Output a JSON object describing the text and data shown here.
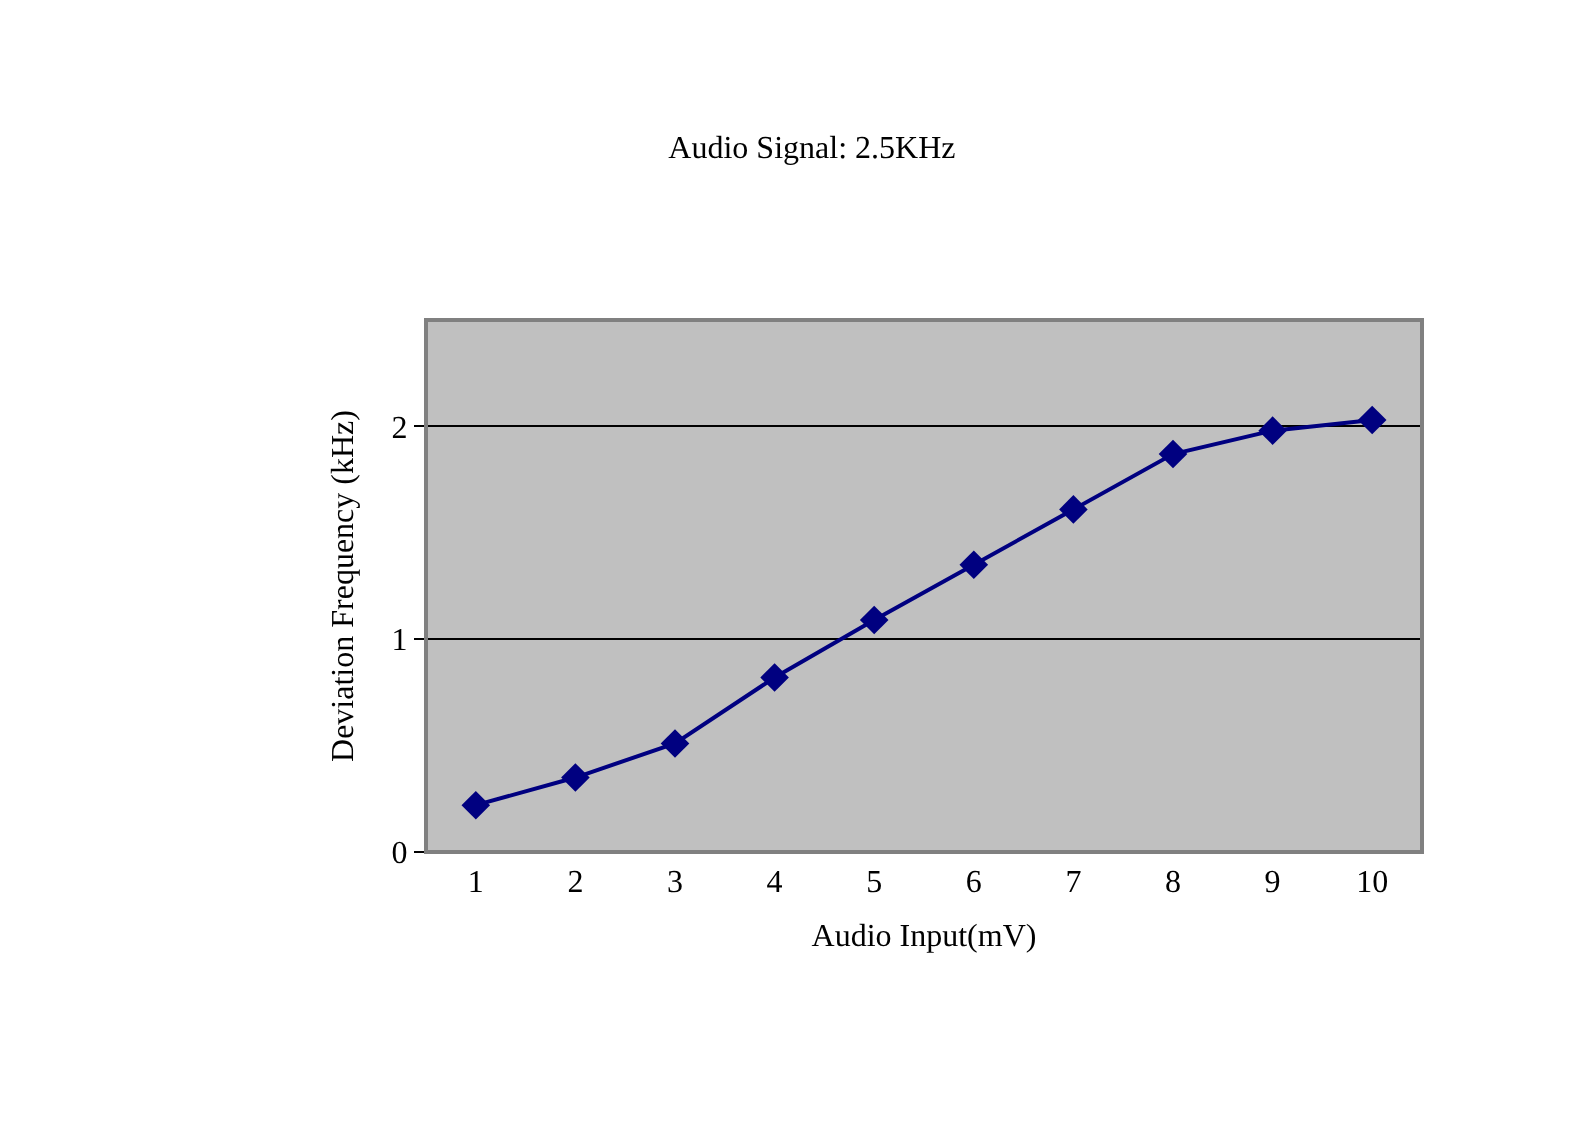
{
  "chart_data": {
    "type": "line",
    "title": "Audio Signal: 2.5KHz",
    "xlabel": "Audio Input(mV)",
    "ylabel": "Deviation Frequency (kHz)",
    "categories": [
      "1",
      "2",
      "3",
      "4",
      "5",
      "6",
      "7",
      "8",
      "9",
      "10"
    ],
    "series": [
      {
        "color": "#000080",
        "values": [
          0.22,
          0.35,
          0.51,
          0.82,
          1.09,
          1.35,
          1.61,
          1.87,
          1.98,
          2.03
        ]
      }
    ],
    "ylim": [
      0,
      2.5
    ],
    "yticks": [
      0,
      1,
      2
    ],
    "grid": "y",
    "marker": "diamond",
    "line_style": "solid"
  }
}
